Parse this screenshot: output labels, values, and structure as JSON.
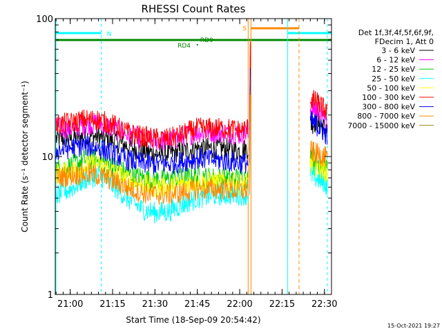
{
  "chart_data": {
    "type": "line",
    "title": "RHESSI Count Rates",
    "xlabel": "Start Time (18-Sep-09 20:54:42)",
    "ylabel": "Count Rate (s⁻¹ detector segment⁻¹)",
    "y_scale": "log",
    "ylim": [
      1,
      100
    ],
    "xlim": [
      "20:54:42",
      "22:32:30"
    ],
    "x_ticks": [
      "21:00",
      "21:15",
      "21:30",
      "21:45",
      "22:00",
      "22:15",
      "22:30"
    ],
    "y_ticks": [
      "1",
      "10",
      "100"
    ],
    "grid": false,
    "legend_position": "right",
    "legend_header": [
      "Det 1f,3f,4f,5f,6f,9f,",
      "FDecim 1, Att 0"
    ],
    "series": [
      {
        "name": "3 - 6 keV",
        "color": "#000000",
        "x": [
          "20:55",
          "21:00",
          "21:05",
          "21:10",
          "21:15",
          "21:20",
          "21:25",
          "21:30",
          "21:35",
          "21:40",
          "21:45",
          "21:50",
          "21:55",
          "22:00",
          "22:03",
          "22:25",
          "22:27",
          "22:30",
          "22:31"
        ],
        "y": [
          13.5,
          13.5,
          14,
          14,
          13,
          12,
          11,
          10.5,
          10.5,
          11,
          11.5,
          11.5,
          11.5,
          11,
          11.5,
          17,
          18,
          16,
          15
        ]
      },
      {
        "name": "6 - 12 keV",
        "color": "#ff00ff",
        "x": [
          "20:55",
          "21:00",
          "21:05",
          "21:10",
          "21:15",
          "21:20",
          "21:25",
          "21:30",
          "21:35",
          "21:40",
          "21:45",
          "21:50",
          "21:55",
          "22:00",
          "22:03",
          "22:25",
          "22:27",
          "22:30",
          "22:31"
        ],
        "y": [
          16,
          16,
          17,
          17.5,
          16,
          14.5,
          13.5,
          13,
          13,
          14,
          15,
          15,
          15,
          14.5,
          15,
          22,
          22,
          20,
          18
        ]
      },
      {
        "name": "12 - 25 keV",
        "color": "#00cc00",
        "x": [
          "20:55",
          "21:00",
          "21:05",
          "21:10",
          "21:15",
          "21:20",
          "21:25",
          "21:30",
          "21:35",
          "21:40",
          "21:45",
          "21:50",
          "21:55",
          "22:00",
          "22:03",
          "22:25",
          "22:27",
          "22:30",
          "22:31"
        ],
        "y": [
          8,
          8.5,
          9.5,
          9.5,
          8.5,
          7.5,
          7,
          6.8,
          6.8,
          7,
          7.2,
          7,
          7,
          7,
          7,
          10,
          9.5,
          8.5,
          8
        ]
      },
      {
        "name": "25 - 50 keV",
        "color": "#00ffff",
        "x": [
          "20:55",
          "21:00",
          "21:05",
          "21:10",
          "21:15",
          "21:20",
          "21:25",
          "21:30",
          "21:35",
          "21:40",
          "21:45",
          "21:50",
          "21:55",
          "22:00",
          "22:03",
          "22:25",
          "22:27",
          "22:30",
          "22:31"
        ],
        "y": [
          5.2,
          5.8,
          6.8,
          7.3,
          6.2,
          5,
          4.2,
          3.9,
          4,
          4.5,
          5,
          5.2,
          5.3,
          5.3,
          5.3,
          7.5,
          7,
          6.5,
          6
        ]
      },
      {
        "name": "50 - 100 keV",
        "color": "#ffff00",
        "x": [
          "20:55",
          "21:00",
          "21:05",
          "21:10",
          "21:15",
          "21:20",
          "21:25",
          "21:30",
          "21:35",
          "21:40",
          "21:45",
          "21:50",
          "21:55",
          "22:00",
          "22:03",
          "22:25",
          "22:27",
          "22:30",
          "22:31"
        ],
        "y": [
          7.5,
          7.8,
          8.5,
          8.8,
          7.8,
          6.8,
          6.3,
          6,
          6,
          6.3,
          6.5,
          6.5,
          6.5,
          6.3,
          6.3,
          9,
          8.5,
          8,
          7.5
        ]
      },
      {
        "name": "100 - 300 keV",
        "color": "#ff0000",
        "x": [
          "20:55",
          "21:00",
          "21:05",
          "21:10",
          "21:15",
          "21:20",
          "21:25",
          "21:30",
          "21:35",
          "21:40",
          "21:45",
          "21:50",
          "21:55",
          "22:00",
          "22:03",
          "22:25",
          "22:27",
          "22:30",
          "22:31"
        ],
        "y": [
          17,
          17.5,
          18.5,
          18.5,
          17,
          15,
          14,
          13.5,
          13.5,
          14.5,
          16,
          16,
          16,
          15.5,
          16,
          26,
          25,
          22,
          20
        ]
      },
      {
        "name": "300 - 800 keV",
        "color": "#0000ff",
        "x": [
          "20:55",
          "21:00",
          "21:05",
          "21:10",
          "21:15",
          "21:20",
          "21:25",
          "21:30",
          "21:35",
          "21:40",
          "21:45",
          "21:50",
          "21:55",
          "22:00",
          "22:03",
          "22:25",
          "22:27",
          "22:30",
          "22:31"
        ],
        "y": [
          11,
          11.5,
          12,
          11.5,
          10.5,
          9.5,
          9,
          8.8,
          8.8,
          9.2,
          9.7,
          9.5,
          9.3,
          9,
          9,
          18,
          17,
          15,
          14
        ]
      },
      {
        "name": "800 - 7000 keV",
        "color": "#ff8800",
        "x": [
          "20:55",
          "21:00",
          "21:05",
          "21:10",
          "21:15",
          "21:20",
          "21:25",
          "21:30",
          "21:35",
          "21:40",
          "21:45",
          "21:50",
          "21:55",
          "22:00",
          "22:03",
          "22:25",
          "22:27",
          "22:30",
          "22:31"
        ],
        "y": [
          7,
          7.3,
          7.5,
          7.3,
          6.7,
          6,
          5.5,
          5.3,
          5.3,
          5.5,
          5.8,
          5.8,
          5.8,
          5.6,
          5.8,
          11,
          10.5,
          10,
          9.5
        ]
      },
      {
        "name": "7000 - 15000 keV",
        "color": "#888800",
        "x": [
          "20:55",
          "21:00",
          "21:05",
          "21:10",
          "21:15",
          "21:20",
          "21:25",
          "21:30",
          "21:35",
          "21:40",
          "21:45",
          "21:50",
          "21:55",
          "22:00",
          "22:03",
          "22:25",
          "22:27",
          "22:30",
          "22:31"
        ],
        "y": [
          null,
          null,
          null,
          null,
          null,
          null,
          null,
          null,
          null,
          null,
          null,
          null,
          null,
          null,
          null,
          null,
          null,
          null,
          null
        ]
      }
    ],
    "annotations": [
      {
        "label": "N",
        "color": "#00ffff"
      },
      {
        "label": "S",
        "color": "#ff8800"
      },
      {
        "label": "RD0",
        "color": "#008800"
      },
      {
        "label": "RD4",
        "color": "#008800"
      }
    ],
    "timestamp": "15-Oct-2021 19:27"
  }
}
